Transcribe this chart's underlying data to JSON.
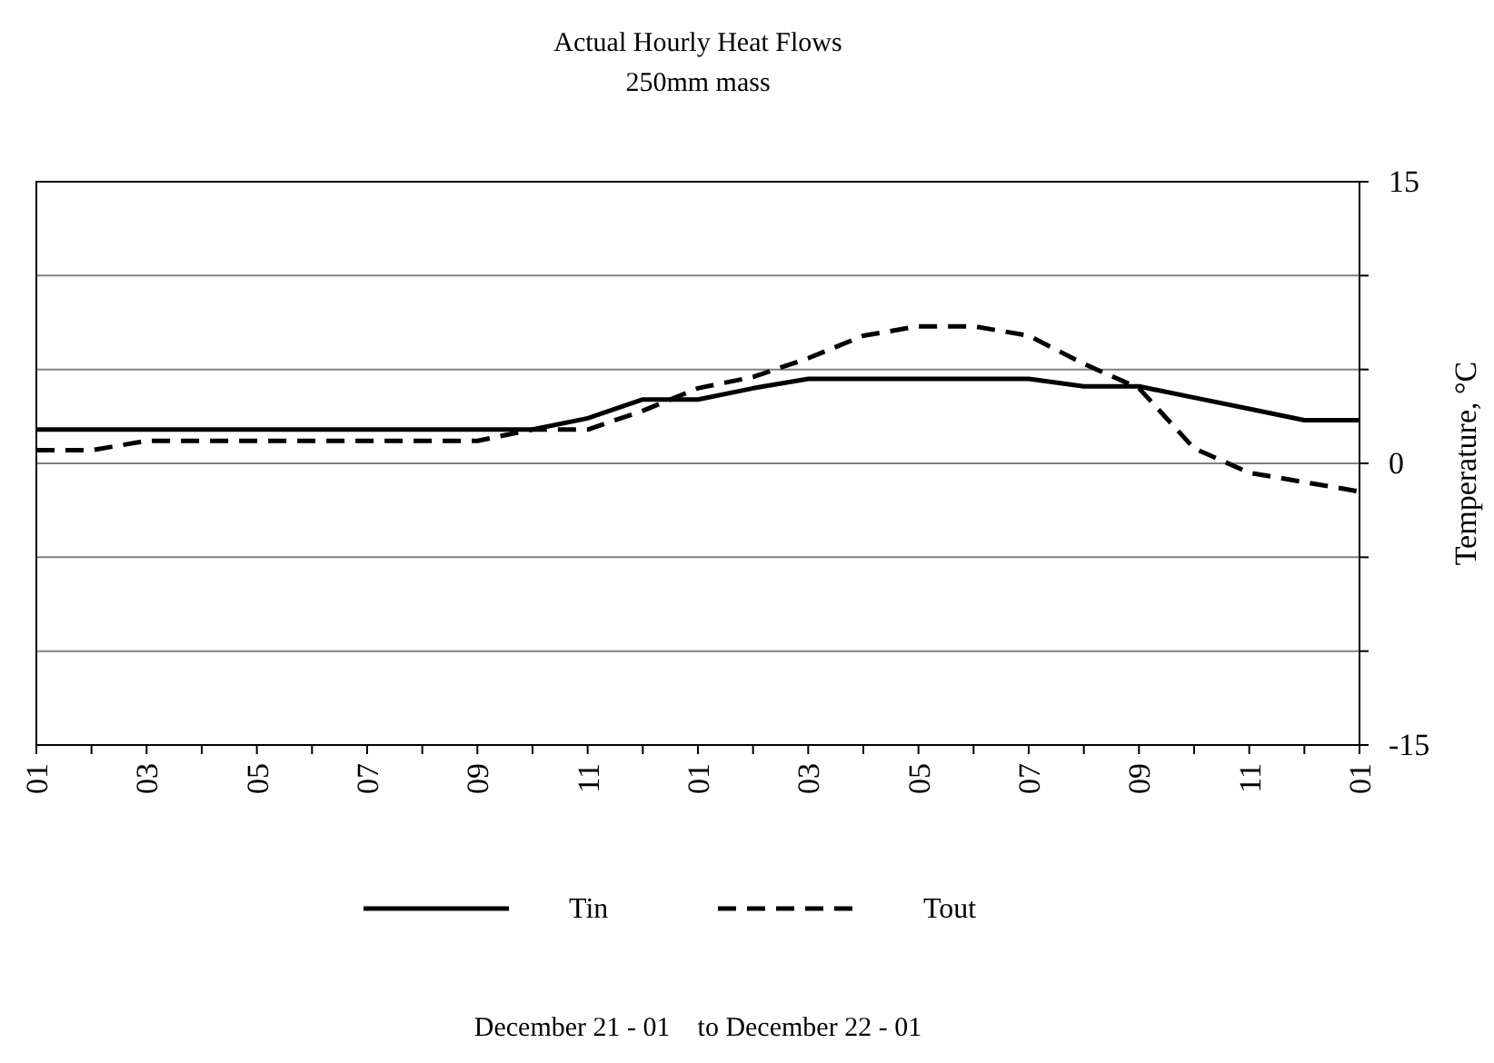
{
  "chart_data": {
    "type": "line",
    "title": "Actual Hourly Heat Flows",
    "subtitle": "250mm mass",
    "annotations": [
      "December 21 - 01    to December 22 - 01"
    ],
    "ylabel": "Temperature, °C",
    "categories": [
      "01",
      null,
      "03",
      null,
      "05",
      null,
      "07",
      null,
      "09",
      null,
      "11",
      null,
      "01",
      null,
      "03",
      null,
      "05",
      null,
      "07",
      null,
      "09",
      null,
      "11",
      null,
      "01"
    ],
    "series": [
      {
        "name": "Tin",
        "color": "#000000",
        "line_style": "solid",
        "values": [
          1.8,
          1.8,
          1.8,
          1.8,
          1.8,
          1.8,
          1.8,
          1.8,
          1.8,
          1.8,
          2.4,
          3.4,
          3.4,
          4.0,
          4.5,
          4.5,
          4.5,
          4.5,
          4.5,
          4.1,
          4.1,
          3.5,
          2.9,
          2.3,
          2.3
        ]
      },
      {
        "name": "Tout",
        "color": "#000000",
        "line_style": "dashed",
        "values": [
          0.7,
          0.7,
          1.2,
          1.2,
          1.2,
          1.2,
          1.2,
          1.2,
          1.2,
          1.8,
          1.8,
          2.8,
          4.0,
          4.6,
          5.6,
          6.8,
          7.3,
          7.3,
          6.8,
          5.3,
          4.0,
          0.8,
          -0.5,
          -1.0,
          -1.5
        ]
      }
    ],
    "ylim": [
      -15,
      15
    ],
    "yticks": [
      -15,
      {
        "value": -10,
        "label": null
      },
      {
        "value": -5,
        "label": null
      },
      0,
      {
        "value": 5,
        "label": null
      },
      {
        "value": 10,
        "label": null
      },
      15
    ],
    "grid": "y",
    "legend": "bottom",
    "marker": "none"
  }
}
